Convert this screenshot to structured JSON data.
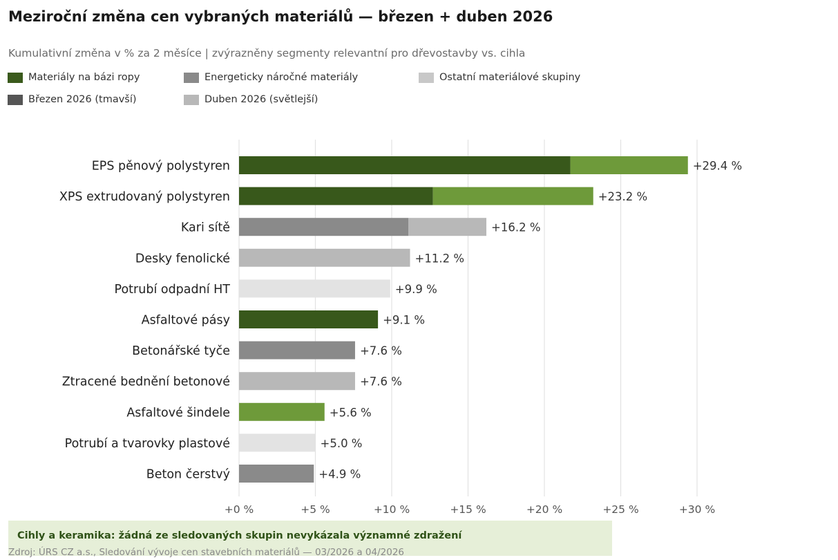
{
  "title": "Meziroční změna cen vybraných materiálů — březen + duben 2026",
  "subtitle": "Kumulativní změna v % za 2 měsíce | zvýrazněny segmenty relevantní pro dřevostavby vs. cihla",
  "legend": [
    {
      "label": "Materiály na bázi ropy",
      "color": "#3a5a1c"
    },
    {
      "label": "Energeticky náročné materiály",
      "color": "#8a8a8a"
    },
    {
      "label": "Ostatní materiálové skupiny",
      "color": "#c8c8c8"
    },
    {
      "label": "Březen 2026 (tmavší)",
      "color": "#555555"
    },
    {
      "label": "Duben 2026 (světlejší)",
      "color": "#b8b8b8"
    }
  ],
  "chart_data": {
    "type": "bar",
    "orientation": "horizontal",
    "stacked": true,
    "categories": [
      "EPS pěnový polystyren",
      "XPS extrudovaný polystyren",
      "Kari sítě",
      "Desky fenolické",
      "Potrubí odpadní HT",
      "Asfaltové pásy",
      "Betonářské tyče",
      "Ztracené bednění betonové",
      "Asfaltové šindele",
      "Potrubí a tvarovky plastové",
      "Beton čerstvý"
    ],
    "series": [
      {
        "values": [
          21.7,
          12.7,
          11.1,
          11.2,
          9.9,
          9.1,
          7.6,
          7.6,
          5.6,
          5.0,
          4.9
        ],
        "colors": [
          "#38581b",
          "#38581b",
          "#8a8a8a",
          "#b8b8b8",
          "#e3e3e3",
          "#38581b",
          "#8a8a8a",
          "#b8b8b8",
          "#6e9a3a",
          "#e3e3e3",
          "#8a8a8a"
        ]
      },
      {
        "values": [
          7.7,
          10.5,
          5.1,
          0,
          0,
          0,
          0,
          0,
          0,
          0,
          0
        ],
        "colors": [
          "#6e9a3a",
          "#6e9a3a",
          "#b8b8b8",
          "#b8b8b8",
          "#e3e3e3",
          "#6e9a3a",
          "#b8b8b8",
          "#b8b8b8",
          "#6e9a3a",
          "#e3e3e3",
          "#b8b8b8"
        ]
      }
    ],
    "totals": [
      "+29.4 %",
      "+23.2 %",
      "+16.2 %",
      "+11.2 %",
      "+9.9 %",
      "+9.1 %",
      "+7.6 %",
      "+7.6 %",
      "+5.6 %",
      "+5.0 %",
      "+4.9 %"
    ],
    "xticks": [
      0,
      5,
      10,
      15,
      20,
      25,
      30
    ],
    "xtick_labels": [
      "+0 %",
      "+5 %",
      "+10 %",
      "+15 %",
      "+20 %",
      "+25 %",
      "+30 %"
    ],
    "xlim": [
      0,
      30
    ],
    "grid": true
  },
  "callout": "Cihly a keramika: žádná ze sledovaných skupin nevykázala významné zdražení",
  "source": "Zdroj: ÚRS CZ a.s., Sledování vývoje cen stavebních materiálů — 03/2026 a 04/2026"
}
